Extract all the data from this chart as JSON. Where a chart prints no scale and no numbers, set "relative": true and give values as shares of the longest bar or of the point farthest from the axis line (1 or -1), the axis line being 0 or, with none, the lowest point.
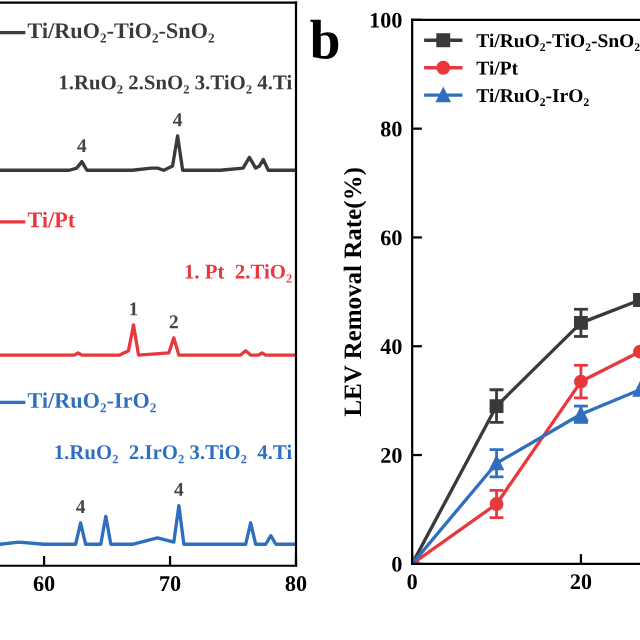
{
  "chart_data": [
    {
      "type": "line",
      "relative": true,
      "xlim": [
        56.5,
        80
      ],
      "xticks": [
        60,
        70,
        80
      ],
      "tick_labels": "x",
      "grid": false,
      "legend": "left",
      "marker": "none",
      "line_style": "solid",
      "annotations": [
        "1.RuO₂ 2.SnO₂ 3.TiO₂ 4.Ti",
        "1. Pt  2.TiO₂",
        "1.RuO₂  2.IrO₂ 3.TiO₂  4.Ti",
        {
          "text": "4",
          "x": 63.0,
          "y": 0.94
        },
        {
          "text": "4",
          "x": 70.6,
          "y": 1.0
        },
        {
          "text": "1",
          "x": 67.1,
          "y": 0.56
        },
        {
          "text": "2",
          "x": 70.3,
          "y": 0.53
        },
        {
          "text": "4",
          "x": 62.9,
          "y": 0.1
        },
        {
          "text": "4",
          "x": 70.7,
          "y": 0.14
        }
      ],
      "series": [
        {
          "name": "Ti/RuO₂-TiO₂-SnO₂",
          "color": "#3a3a3a",
          "x": [
            56.5,
            58,
            60,
            62,
            62.6,
            63.0,
            63.4,
            65,
            67,
            68.5,
            69,
            69.5,
            70.2,
            70.6,
            71.0,
            72,
            74,
            75.8,
            76.3,
            76.8,
            77.1,
            77.4,
            77.8,
            79,
            80
          ],
          "values": [
            0.92,
            0.92,
            0.92,
            0.92,
            0.925,
            0.94,
            0.92,
            0.92,
            0.92,
            0.925,
            0.925,
            0.92,
            0.93,
            1.0,
            0.92,
            0.92,
            0.92,
            0.925,
            0.95,
            0.925,
            0.93,
            0.945,
            0.92,
            0.92,
            0.92
          ]
        },
        {
          "name": "Ti/Pt",
          "color": "#e8383d",
          "x": [
            56.5,
            60,
            62.4,
            62.7,
            63.0,
            66,
            66.7,
            67.1,
            67.5,
            69.9,
            70.3,
            70.7,
            75.6,
            76.0,
            76.4,
            77,
            77.3,
            77.6,
            80
          ],
          "values": [
            0.49,
            0.49,
            0.49,
            0.495,
            0.49,
            0.49,
            0.5,
            0.56,
            0.49,
            0.495,
            0.53,
            0.49,
            0.49,
            0.5,
            0.49,
            0.49,
            0.495,
            0.49,
            0.49
          ]
        },
        {
          "name": "Ti/RuO₂-IrO₂",
          "color": "#2f6fc0",
          "x": [
            56.5,
            58,
            60,
            62.5,
            62.9,
            63.3,
            64.5,
            64.9,
            65.3,
            67,
            69,
            70.3,
            70.7,
            71.1,
            73,
            76,
            76.4,
            76.8,
            77.6,
            78,
            78.4,
            80
          ],
          "values": [
            0.05,
            0.055,
            0.05,
            0.05,
            0.1,
            0.05,
            0.05,
            0.115,
            0.05,
            0.05,
            0.065,
            0.055,
            0.14,
            0.05,
            0.05,
            0.05,
            0.1,
            0.05,
            0.05,
            0.07,
            0.05,
            0.05
          ]
        }
      ]
    },
    {
      "type": "line",
      "title": "b",
      "ylabel": "LEV Removal Rate(%)",
      "xlim": [
        0,
        27
      ],
      "xticks": [
        0,
        20
      ],
      "ylim": [
        0,
        100
      ],
      "yticks": [
        0,
        20,
        40,
        60,
        80,
        100
      ],
      "grid": false,
      "legend": "top left",
      "line_style": "solid",
      "series": [
        {
          "name": "Ti/RuO₂-TiO₂-SnO₂",
          "color": "#3a3a3a",
          "marker": "square",
          "x": [
            0,
            10,
            20,
            27
          ],
          "values": [
            0,
            29,
            44.3,
            48.5
          ],
          "errors": [
            null,
            3,
            2.5,
            null
          ]
        },
        {
          "name": "Ti/Pt",
          "color": "#e8383d",
          "marker": "circle",
          "x": [
            0,
            10,
            20,
            27
          ],
          "values": [
            0,
            11,
            33.5,
            39
          ],
          "errors": [
            null,
            2.5,
            3,
            null
          ]
        },
        {
          "name": "Ti/RuO₂-IrO₂",
          "color": "#2f6fc0",
          "marker": "triangle",
          "x": [
            0,
            10,
            20,
            27
          ],
          "values": [
            0,
            18.5,
            27.5,
            32
          ],
          "errors": [
            null,
            2.5,
            1.5,
            null
          ]
        }
      ]
    }
  ]
}
